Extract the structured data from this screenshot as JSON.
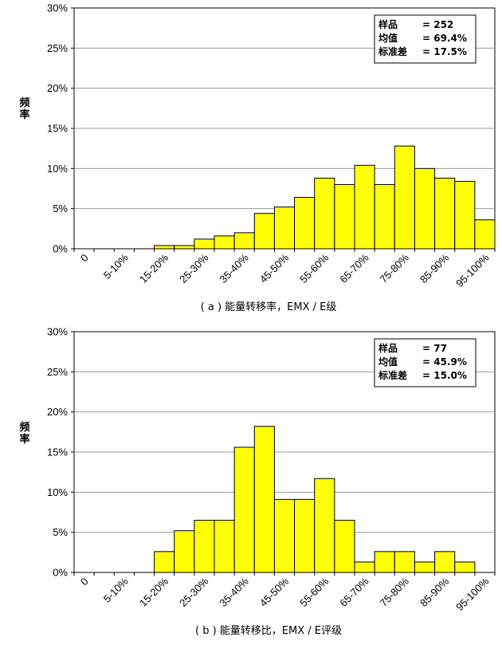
{
  "chart_data": [
    {
      "type": "bar",
      "id": "a",
      "caption": "( a ) 能量转移率，EMX / E级",
      "ylabel": "频\n率",
      "ylim": [
        0,
        30
      ],
      "yticks": [
        "0%",
        "5%",
        "10%",
        "15%",
        "20%",
        "25%",
        "30%"
      ],
      "bins": 21,
      "xtick_labels": [
        "0",
        "5-10%",
        "15-20%",
        "25-30%",
        "35-40%",
        "45-50%",
        "55-60%",
        "65-70%",
        "75-80%",
        "85-90%",
        "95-100%"
      ],
      "values": [
        0,
        0,
        0,
        0,
        0.4,
        0.4,
        1.2,
        1.6,
        2.0,
        4.4,
        5.2,
        6.4,
        8.8,
        8.0,
        10.4,
        8.0,
        12.8,
        10.0,
        8.8,
        8.4,
        3.6
      ],
      "bar_color": "#ffff00",
      "grid": true,
      "legend_position": "top-right",
      "stats": [
        {
          "label": "样品",
          "value": "= 252"
        },
        {
          "label": "均值",
          "value": "= 69.4%"
        },
        {
          "label": "标准差",
          "value": "= 17.5%"
        }
      ]
    },
    {
      "type": "bar",
      "id": "b",
      "caption": "( b ) 能量转移比，EMX / E评级",
      "ylabel": "频\n率",
      "ylim": [
        0,
        30
      ],
      "yticks": [
        "0%",
        "5%",
        "10%",
        "15%",
        "20%",
        "25%",
        "30%"
      ],
      "bins": 21,
      "xtick_labels": [
        "0",
        "5-10%",
        "15-20%",
        "25-30%",
        "35-40%",
        "45-50%",
        "55-60%",
        "65-70%",
        "75-80%",
        "85-90%",
        "95-100%"
      ],
      "values": [
        0,
        0,
        0,
        0,
        2.6,
        5.2,
        6.5,
        6.5,
        15.6,
        18.2,
        9.1,
        9.1,
        11.7,
        6.5,
        1.3,
        2.6,
        2.6,
        1.3,
        2.6,
        1.3,
        0
      ],
      "bar_color": "#ffff00",
      "grid": true,
      "legend_position": "top-right",
      "stats": [
        {
          "label": "样品",
          "value": "= 77"
        },
        {
          "label": "均值",
          "value": "= 45.9%"
        },
        {
          "label": "标准差",
          "value": "= 15.0%"
        }
      ]
    }
  ]
}
